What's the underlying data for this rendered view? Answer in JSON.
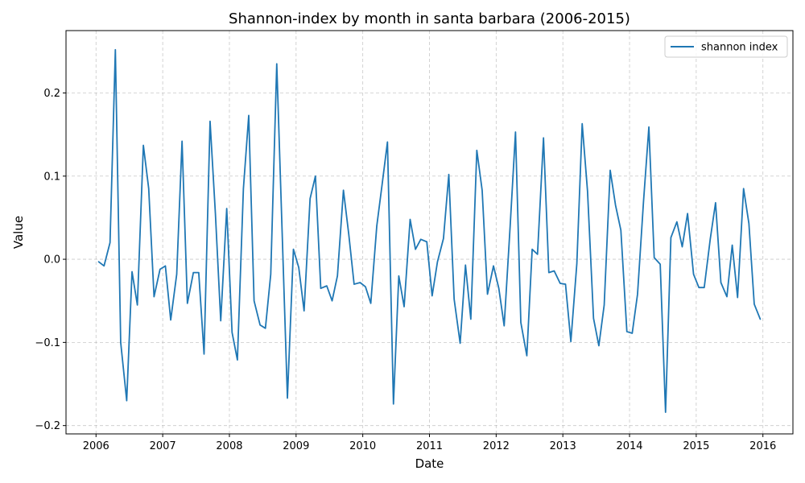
{
  "chart_data": {
    "type": "line",
    "title": "Shannon-index by month in santa barbara (2006-2015)",
    "xlabel": "Date",
    "ylabel": "Value",
    "xlim": [
      2005.55,
      2016.45
    ],
    "ylim": [
      -0.21,
      0.275
    ],
    "x_ticks": [
      2006,
      2007,
      2008,
      2009,
      2010,
      2011,
      2012,
      2013,
      2014,
      2015,
      2016
    ],
    "x_tick_labels": [
      "2006",
      "2007",
      "2008",
      "2009",
      "2010",
      "2011",
      "2012",
      "2013",
      "2014",
      "2015",
      "2016"
    ],
    "y_ticks": [
      -0.2,
      -0.1,
      0.0,
      0.1,
      0.2
    ],
    "y_tick_labels": [
      "−0.2",
      "−0.1",
      "0.0",
      "0.1",
      "0.2"
    ],
    "grid": true,
    "legend_position": "top-right",
    "line_color": "#1f77b4",
    "series": [
      {
        "name": "shannon index",
        "x": [
          2006.04,
          2006.12,
          2006.21,
          2006.29,
          2006.37,
          2006.46,
          2006.54,
          2006.62,
          2006.71,
          2006.79,
          2006.87,
          2006.96,
          2007.04,
          2007.12,
          2007.21,
          2007.29,
          2007.37,
          2007.46,
          2007.54,
          2007.62,
          2007.71,
          2007.79,
          2007.87,
          2007.96,
          2008.04,
          2008.12,
          2008.21,
          2008.29,
          2008.37,
          2008.46,
          2008.54,
          2008.62,
          2008.71,
          2008.79,
          2008.87,
          2008.96,
          2009.04,
          2009.12,
          2009.21,
          2009.29,
          2009.37,
          2009.46,
          2009.54,
          2009.62,
          2009.71,
          2009.79,
          2009.87,
          2009.96,
          2010.04,
          2010.12,
          2010.21,
          2010.29,
          2010.37,
          2010.46,
          2010.54,
          2010.62,
          2010.71,
          2010.79,
          2010.87,
          2010.96,
          2011.04,
          2011.12,
          2011.21,
          2011.29,
          2011.37,
          2011.46,
          2011.54,
          2011.62,
          2011.71,
          2011.79,
          2011.87,
          2011.96,
          2012.04,
          2012.12,
          2012.21,
          2012.29,
          2012.37,
          2012.46,
          2012.54,
          2012.62,
          2012.71,
          2012.79,
          2012.87,
          2012.96,
          2013.04,
          2013.12,
          2013.21,
          2013.29,
          2013.37,
          2013.46,
          2013.54,
          2013.62,
          2013.71,
          2013.79,
          2013.87,
          2013.96,
          2014.04,
          2014.12,
          2014.21,
          2014.29,
          2014.37,
          2014.46,
          2014.54,
          2014.62,
          2014.71,
          2014.79,
          2014.87,
          2014.96,
          2015.04,
          2015.12,
          2015.21,
          2015.29,
          2015.37,
          2015.46,
          2015.54,
          2015.62,
          2015.71,
          2015.79,
          2015.87,
          2015.96
        ],
        "values": [
          -0.003,
          -0.008,
          0.02,
          0.252,
          -0.1,
          -0.17,
          -0.015,
          -0.055,
          0.137,
          0.085,
          -0.045,
          -0.012,
          -0.008,
          -0.073,
          -0.018,
          0.142,
          -0.053,
          -0.016,
          -0.016,
          -0.114,
          0.166,
          0.055,
          -0.074,
          0.061,
          -0.088,
          -0.121,
          0.085,
          0.173,
          -0.05,
          -0.079,
          -0.083,
          -0.018,
          0.235,
          0.035,
          -0.167,
          0.012,
          -0.01,
          -0.062,
          0.073,
          0.1,
          -0.035,
          -0.032,
          -0.05,
          -0.02,
          0.083,
          0.03,
          -0.03,
          -0.028,
          -0.033,
          -0.053,
          0.04,
          0.09,
          0.141,
          -0.174,
          -0.02,
          -0.057,
          0.048,
          0.012,
          0.024,
          0.021,
          -0.044,
          -0.003,
          0.025,
          0.102,
          -0.048,
          -0.101,
          -0.007,
          -0.072,
          0.131,
          0.083,
          -0.042,
          -0.008,
          -0.035,
          -0.08,
          0.04,
          0.153,
          -0.076,
          -0.116,
          0.012,
          0.006,
          0.146,
          -0.016,
          -0.014,
          -0.029,
          -0.03,
          -0.099,
          -0.005,
          0.163,
          0.082,
          -0.071,
          -0.104,
          -0.055,
          0.107,
          0.065,
          0.035,
          -0.087,
          -0.089,
          -0.042,
          0.07,
          0.159,
          0.002,
          -0.006,
          -0.184,
          0.026,
          0.045,
          0.015,
          0.055,
          -0.018,
          -0.034,
          -0.034,
          0.024,
          0.068,
          -0.028,
          -0.045,
          0.017,
          -0.046,
          0.085,
          0.043,
          -0.054,
          -0.072
        ]
      }
    ]
  }
}
